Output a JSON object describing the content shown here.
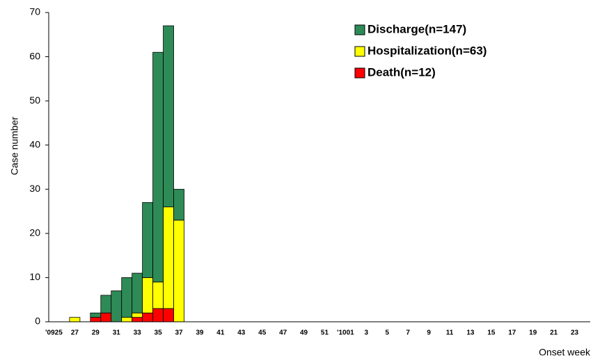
{
  "chart_data": {
    "type": "stacked_bar",
    "y_label": "Case number",
    "x_label": "Onset week",
    "categories": [
      "'0925",
      null,
      "27",
      null,
      "29",
      null,
      "31",
      null,
      "33",
      null,
      "35",
      null,
      "37",
      null,
      "39",
      null,
      "41",
      null,
      "43",
      null,
      "45",
      null,
      "47",
      null,
      "49",
      null,
      "51",
      null,
      "'1001",
      null,
      "3",
      null,
      "5",
      null,
      "7",
      null,
      "9",
      null,
      "11",
      null,
      "13",
      null,
      "15",
      null,
      "17",
      null,
      "19",
      null,
      "21",
      null,
      "23",
      null
    ],
    "series": [
      {
        "name": "Discharge(n=147)",
        "color": "#2e8b57",
        "values": [
          0,
          0,
          0,
          0,
          1,
          4,
          7,
          9,
          9,
          17,
          52,
          41,
          7,
          0,
          0,
          0,
          0,
          0,
          0,
          0,
          0,
          0,
          0,
          0,
          0,
          0,
          0,
          0,
          0,
          0,
          0,
          0,
          0,
          0,
          0,
          0,
          0,
          0,
          0,
          0,
          0,
          0,
          0,
          0,
          0,
          0,
          0,
          0,
          0,
          0,
          0,
          0
        ]
      },
      {
        "name": "Hospitalization(n=63)",
        "color": "#ffff00",
        "values": [
          0,
          0,
          1,
          0,
          0,
          0,
          0,
          1,
          1,
          8,
          6,
          23,
          23,
          0,
          0,
          0,
          0,
          0,
          0,
          0,
          0,
          0,
          0,
          0,
          0,
          0,
          0,
          0,
          0,
          0,
          0,
          0,
          0,
          0,
          0,
          0,
          0,
          0,
          0,
          0,
          0,
          0,
          0,
          0,
          0,
          0,
          0,
          0,
          0,
          0,
          0,
          0
        ]
      },
      {
        "name": "Death(n=12)",
        "color": "#ff0000",
        "values": [
          0,
          0,
          0,
          0,
          1,
          2,
          0,
          0,
          1,
          2,
          3,
          3,
          0,
          0,
          0,
          0,
          0,
          0,
          0,
          0,
          0,
          0,
          0,
          0,
          0,
          0,
          0,
          0,
          0,
          0,
          0,
          0,
          0,
          0,
          0,
          0,
          0,
          0,
          0,
          0,
          0,
          0,
          0,
          0,
          0,
          0,
          0,
          0,
          0,
          0,
          0,
          0
        ]
      }
    ],
    "ylim": [
      0,
      70
    ],
    "yticks": [
      0,
      10,
      20,
      30,
      40,
      50,
      60,
      70
    ],
    "grid": false
  }
}
